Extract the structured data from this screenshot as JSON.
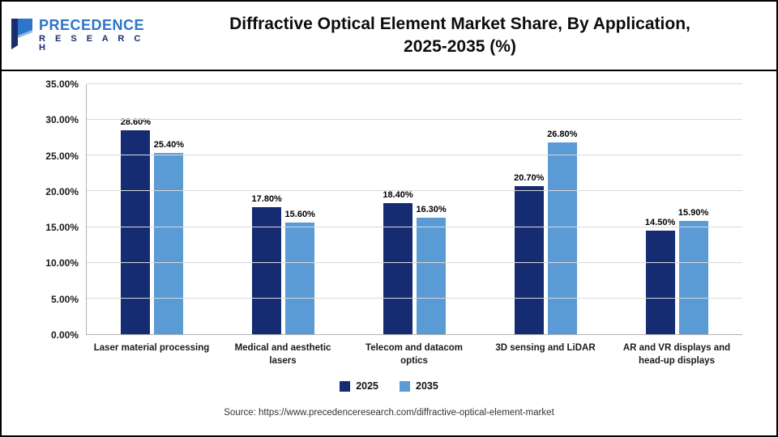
{
  "header": {
    "logo": {
      "line1": "PRECEDENCE",
      "line2": "R E S E A R C H"
    },
    "title_line1": "Diffractive Optical Element Market Share, By Application,",
    "title_line2": "2025-2035 (%)"
  },
  "source": "Source: https://www.precedenceresearch.com/diffractive-optical-element-market",
  "chart_data": {
    "type": "bar",
    "title": "Diffractive Optical Element Market Share, By Application, 2025-2035 (%)",
    "categories": [
      "Laser material processing",
      "Medical and aesthetic lasers",
      "Telecom and datacom optics",
      "3D sensing and LiDAR",
      "AR and VR displays and head-up displays"
    ],
    "series": [
      {
        "name": "2025",
        "color": "#152c73",
        "values": [
          28.6,
          17.8,
          18.4,
          20.7,
          14.5
        ]
      },
      {
        "name": "2035",
        "color": "#5b9bd5",
        "values": [
          25.4,
          15.6,
          16.3,
          26.8,
          15.9
        ]
      }
    ],
    "ylim": [
      0,
      35
    ],
    "ytick_step": 5,
    "ytick_labels": [
      "0.00%",
      "5.00%",
      "10.00%",
      "15.00%",
      "20.00%",
      "25.00%",
      "30.00%",
      "35.00%"
    ],
    "ylabel": "",
    "xlabel": "",
    "grid": true,
    "legend_position": "bottom",
    "value_label_suffix": "%"
  }
}
